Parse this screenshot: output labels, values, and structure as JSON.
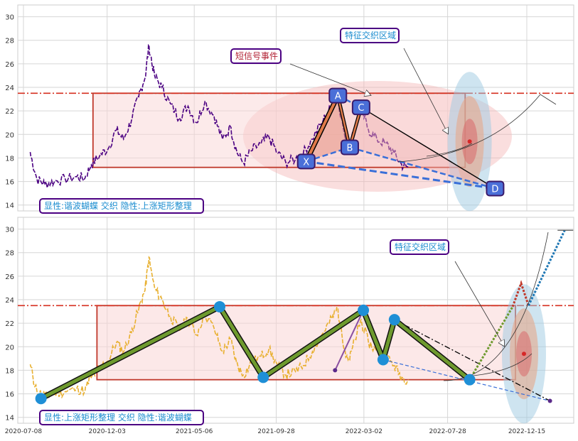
{
  "chart_data": [
    {
      "type": "line",
      "panel": "top",
      "ylim": [
        13.5,
        31
      ],
      "yticks": [
        14,
        16,
        18,
        20,
        22,
        24,
        26,
        28,
        30
      ],
      "grid": true,
      "price_color": "#4b0082",
      "price_series": [
        [
          "2020-07-20",
          18.5
        ],
        [
          "2020-08-01",
          16.2
        ],
        [
          "2020-08-15",
          15.8
        ],
        [
          "2020-09-01",
          16.0
        ],
        [
          "2020-09-20",
          16.2
        ],
        [
          "2020-10-10",
          16.4
        ],
        [
          "2020-10-25",
          16.3
        ],
        [
          "2020-11-05",
          17.4
        ],
        [
          "2020-11-20",
          18.2
        ],
        [
          "2020-12-05",
          18.8
        ],
        [
          "2020-12-20",
          20.4
        ],
        [
          "2021-01-01",
          19.6
        ],
        [
          "2021-01-15",
          21.2
        ],
        [
          "2021-01-28",
          23.2
        ],
        [
          "2021-02-08",
          24.8
        ],
        [
          "2021-02-15",
          27.6
        ],
        [
          "2021-02-25",
          25.0
        ],
        [
          "2021-03-10",
          24.0
        ],
        [
          "2021-03-25",
          22.6
        ],
        [
          "2021-04-10",
          21.4
        ],
        [
          "2021-04-25",
          22.4
        ],
        [
          "2021-05-10",
          21.0
        ],
        [
          "2021-05-25",
          22.8
        ],
        [
          "2021-06-10",
          21.6
        ],
        [
          "2021-06-25",
          19.6
        ],
        [
          "2021-07-10",
          20.6
        ],
        [
          "2021-07-20",
          18.6
        ],
        [
          "2021-08-01",
          17.6
        ],
        [
          "2021-08-15",
          18.6
        ],
        [
          "2021-09-01",
          19.2
        ],
        [
          "2021-09-15",
          19.8
        ],
        [
          "2021-10-01",
          18.4
        ],
        [
          "2021-10-15",
          17.6
        ],
        [
          "2021-11-01",
          17.9
        ],
        [
          "2021-11-15",
          18.4
        ],
        [
          "2021-12-01",
          19.6
        ],
        [
          "2021-12-20",
          21.2
        ],
        [
          "2022-01-05",
          22.4
        ],
        [
          "2022-01-15",
          23.3
        ],
        [
          "2022-01-28",
          19.6
        ],
        [
          "2022-02-05",
          18.9
        ],
        [
          "2022-02-18",
          21.2
        ],
        [
          "2022-02-25",
          22.3
        ],
        [
          "2022-03-10",
          20.4
        ],
        [
          "2022-03-25",
          19.6
        ],
        [
          "2022-04-10",
          19.2
        ],
        [
          "2022-04-25",
          18.4
        ],
        [
          "2022-05-08",
          17.4
        ],
        [
          "2022-05-20",
          17.2
        ]
      ],
      "range_box": {
        "x0": "2020-11-08",
        "x1": "2022-08-28",
        "y0": 17.2,
        "y1": 23.5
      },
      "resistance_level": 23.5,
      "points": [
        {
          "label": "X",
          "date": "2021-11-20",
          "value": 17.7
        },
        {
          "label": "A",
          "date": "2022-01-15",
          "value": 23.3
        },
        {
          "label": "B",
          "date": "2022-02-05",
          "value": 18.9
        },
        {
          "label": "C",
          "date": "2022-02-25",
          "value": 22.3
        },
        {
          "label": "D",
          "date": "2022-10-20",
          "value": 15.4
        }
      ],
      "annotations": {
        "short_signal": "短信号事件",
        "feature_zone": "特征交织区域",
        "legend_box": "显性:谐波蝴蝶 交织 隐性:上涨矩形整理"
      },
      "target_ellipse": {
        "date": "2022-09-05",
        "value": 19.4
      }
    },
    {
      "type": "line",
      "panel": "bottom",
      "ylim": [
        13.5,
        31
      ],
      "yticks": [
        14,
        16,
        18,
        20,
        22,
        24,
        26,
        28,
        30
      ],
      "xticks": [
        "2020-07-08",
        "2020-12-03",
        "2021-05-06",
        "2021-09-28",
        "2022-03-02",
        "2022-07-28",
        "2022-12-15"
      ],
      "grid": true,
      "price_color": "#e8b030",
      "price_series": [
        [
          "2020-07-20",
          18.5
        ],
        [
          "2020-08-01",
          16.2
        ],
        [
          "2020-08-15",
          15.8
        ],
        [
          "2020-09-01",
          16.0
        ],
        [
          "2020-09-20",
          16.2
        ],
        [
          "2020-10-10",
          16.4
        ],
        [
          "2020-10-25",
          16.3
        ],
        [
          "2020-11-05",
          17.4
        ],
        [
          "2020-11-20",
          18.2
        ],
        [
          "2020-12-05",
          18.8
        ],
        [
          "2020-12-20",
          20.4
        ],
        [
          "2021-01-01",
          19.6
        ],
        [
          "2021-01-15",
          21.2
        ],
        [
          "2021-01-28",
          23.2
        ],
        [
          "2021-02-08",
          24.8
        ],
        [
          "2021-02-15",
          27.6
        ],
        [
          "2021-02-25",
          25.0
        ],
        [
          "2021-03-10",
          24.0
        ],
        [
          "2021-03-25",
          22.6
        ],
        [
          "2021-04-10",
          21.4
        ],
        [
          "2021-04-25",
          22.4
        ],
        [
          "2021-05-10",
          21.0
        ],
        [
          "2021-05-25",
          22.8
        ],
        [
          "2021-06-10",
          21.6
        ],
        [
          "2021-06-25",
          19.6
        ],
        [
          "2021-07-10",
          20.6
        ],
        [
          "2021-07-20",
          18.6
        ],
        [
          "2021-08-01",
          17.6
        ],
        [
          "2021-08-15",
          18.6
        ],
        [
          "2021-09-01",
          19.2
        ],
        [
          "2021-09-15",
          19.8
        ],
        [
          "2021-10-01",
          18.4
        ],
        [
          "2021-10-15",
          17.6
        ],
        [
          "2021-11-01",
          17.9
        ],
        [
          "2021-11-15",
          18.4
        ],
        [
          "2021-12-01",
          19.6
        ],
        [
          "2021-12-20",
          21.2
        ],
        [
          "2022-01-05",
          22.4
        ],
        [
          "2022-01-15",
          23.3
        ],
        [
          "2022-01-28",
          19.6
        ],
        [
          "2022-02-05",
          18.9
        ],
        [
          "2022-02-18",
          21.2
        ],
        [
          "2022-02-25",
          22.3
        ],
        [
          "2022-03-10",
          20.4
        ],
        [
          "2022-03-25",
          19.6
        ],
        [
          "2022-04-10",
          19.2
        ],
        [
          "2022-04-25",
          18.4
        ],
        [
          "2022-05-08",
          17.4
        ],
        [
          "2022-05-20",
          17.2
        ]
      ],
      "range_box": {
        "x0": "2020-11-15",
        "x1": "2022-11-25",
        "y0": 17.2,
        "y1": 23.5
      },
      "resistance_level": 23.5,
      "pivots": [
        [
          "2020-08-08",
          15.6
        ],
        [
          "2021-06-20",
          23.4
        ],
        [
          "2021-09-05",
          17.4
        ],
        [
          "2022-03-01",
          23.1
        ],
        [
          "2022-04-05",
          18.9
        ],
        [
          "2022-04-25",
          22.3
        ],
        [
          "2022-09-05",
          17.2
        ]
      ],
      "hidden_xb": [
        [
          "2022-01-10",
          18.0
        ],
        [
          "2022-03-01",
          23.1
        ]
      ],
      "hidden_bd": [
        [
          "2022-04-05",
          18.9
        ],
        [
          "2023-01-25",
          15.4
        ]
      ],
      "hidden_cd": [
        [
          "2022-04-25",
          22.3
        ],
        [
          "2023-01-25",
          15.4
        ]
      ],
      "projection": [
        [
          "2022-09-05",
          17.2
        ],
        [
          "2022-11-20",
          23.4
        ],
        [
          "2022-12-05",
          25.4
        ],
        [
          "2022-12-18",
          23.5
        ],
        [
          "2023-02-20",
          29.9
        ]
      ],
      "annotations": {
        "feature_zone": "特征交织区域",
        "legend_box": "显性:上涨矩形整理 交织 隐性:谐波蝴蝶"
      },
      "target_ellipse": {
        "date": "2022-12-10",
        "value": 19.4
      }
    }
  ]
}
